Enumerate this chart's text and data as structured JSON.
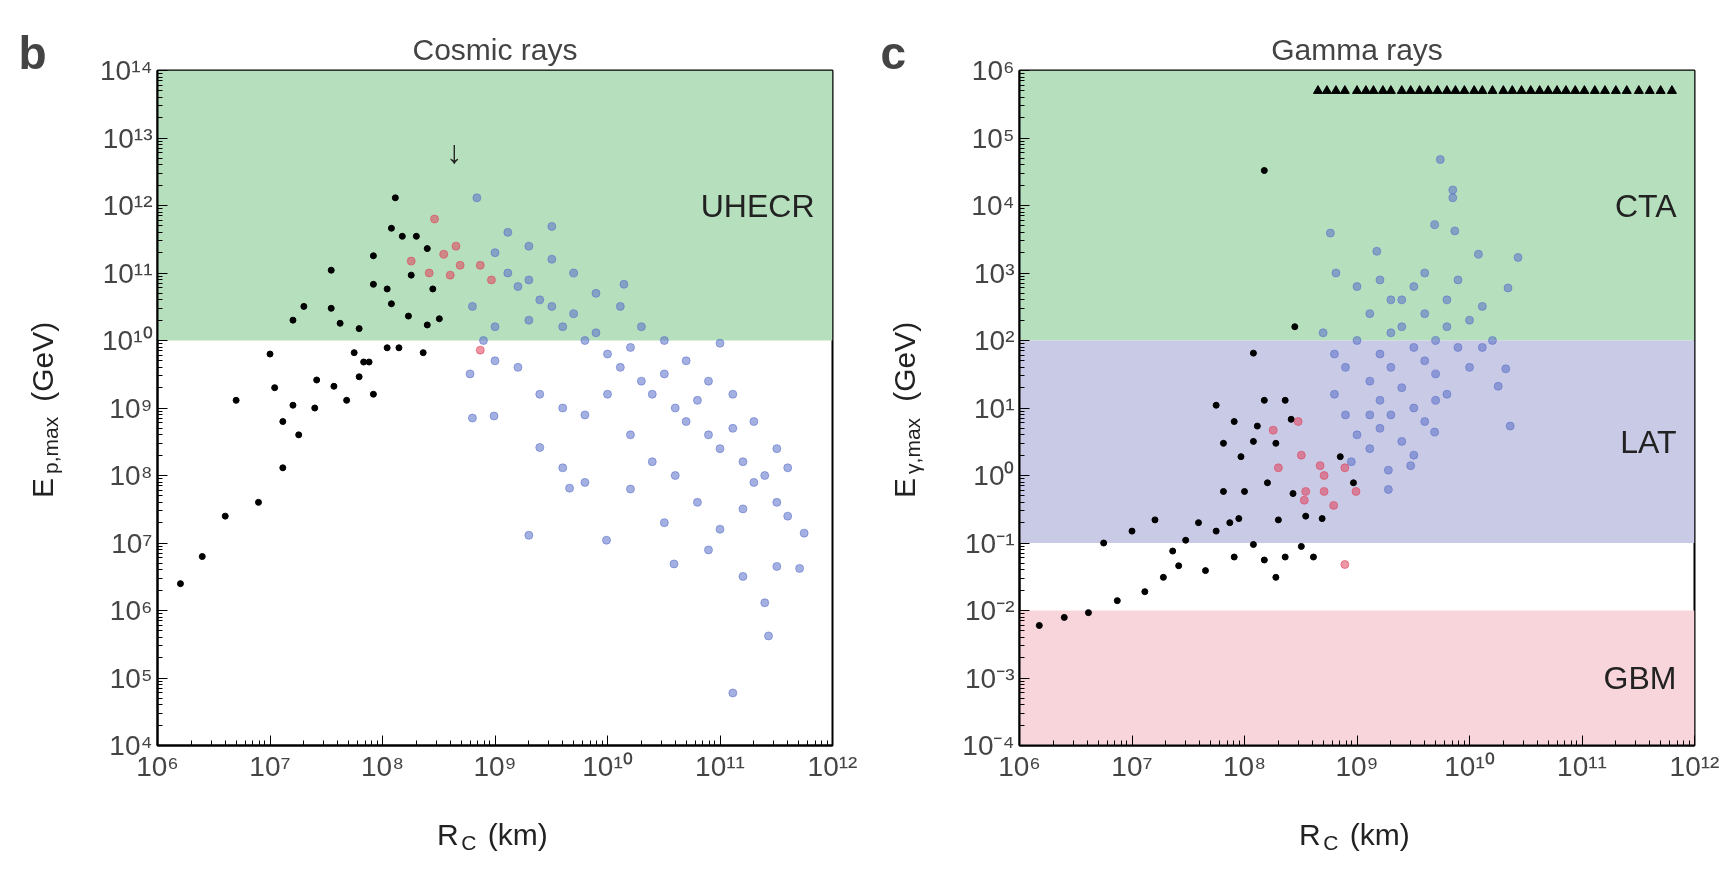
{
  "chart_data": [
    {
      "type": "scatter",
      "title": "Cosmic rays",
      "xlabel": "R$_{C}$ (km)",
      "ylabel": "E$_{p,max}$ (GeV)",
      "log": "xy",
      "grid": false,
      "marker": "circle",
      "xlim": [
        1000000.0,
        1000000000000.0
      ],
      "ylim": [
        10000.0,
        100000000000000.0
      ],
      "xticks": [
        {
          "value": 1000000.0,
          "label": "10⁶"
        },
        {
          "value": 10000000.0,
          "label": "10⁷"
        },
        {
          "value": 100000000.0,
          "label": "10⁸"
        },
        {
          "value": 1000000000.0,
          "label": "10⁹"
        },
        {
          "value": 10000000000.0,
          "label": "10¹⁰"
        },
        {
          "value": 100000000000.0,
          "label": "10¹¹"
        },
        {
          "value": 1000000000000.0,
          "label": "10¹²"
        }
      ],
      "yticks": [
        {
          "value": 10000.0,
          "label": "10⁴"
        },
        {
          "value": 100000.0,
          "label": "10⁵"
        },
        {
          "value": 1000000.0,
          "label": "10⁶"
        },
        {
          "value": 10000000.0,
          "label": "10⁷"
        },
        {
          "value": 100000000.0,
          "label": "10⁸"
        },
        {
          "value": 1000000000.0,
          "label": "10⁹"
        },
        {
          "value": 10000000000.0,
          "label": "10¹⁰"
        },
        {
          "value": 100000000000.0,
          "label": "10¹¹"
        },
        {
          "value": 1000000000000.0,
          "label": "10¹²"
        },
        {
          "value": 10000000000000.0,
          "label": "10¹³"
        },
        {
          "value": 100000000000000.0,
          "label": "10¹⁴"
        }
      ],
      "bands": [
        {
          "axis": "y",
          "from": 10000000000.0,
          "to": 100000000000000.0,
          "label": "UHECR",
          "color": "#b5dfbd"
        }
      ],
      "annotations": [
        "b",
        "↓"
      ],
      "series": [
        {
          "color": "#5a6fc8",
          "x": [
            2000000000.0,
            270000000000.0,
            2500000000.0,
            4600000000.0,
            690000000.0,
            3200000000.0,
            14000000000.0,
            100000000000.0,
            560000000000.0,
            510000000000.0,
            320000000000.0,
            39000000000.0,
            9800000000.0,
            630000000.0,
            980000000.0,
            600000000.0,
            130000000000.0,
            1000000000.0,
            1300000000.0,
            1600000000.0,
            2000000000.0,
            2500000000.0,
            2000000000.0,
            3200000000.0,
            4000000000.0,
            5000000000.0,
            6300000000.0,
            7900000000.0,
            10000000000.0,
            13000000000.0,
            16000000000.0,
            20000000000.0,
            25000000000.0,
            32000000000.0,
            40000000000.0,
            50000000000.0,
            63000000000.0,
            79000000000.0,
            100000000000.0,
            130000000000.0,
            160000000000.0,
            200000000000.0,
            250000000000.0,
            320000000000.0,
            400000000000.0,
            1000000000.0,
            1600000000.0,
            2500000000.0,
            4000000000.0,
            6300000000.0,
            10000000000.0,
            16000000000.0,
            25000000000.0,
            40000000000.0,
            63000000000.0,
            100000000000.0,
            160000000000.0,
            1300000000.0,
            2000000000.0,
            3200000000.0,
            5000000000.0,
            7900000000.0,
            13000000000.0,
            20000000000.0,
            32000000000.0,
            50000000000.0,
            79000000000.0,
            130000000000.0,
            200000000000.0,
            320000000000.0,
            400000000000.0,
            630000000.0,
            790000000.0,
            1000000000.0,
            4000000000.0,
            6300000000.0,
            16000000000.0,
            32000000000.0,
            79000000000.0,
            160000000000.0,
            250000000000.0
          ],
          "values": [
            13000000.0,
            420000.0,
            260000000.0,
            65000000.0,
            1300000000000.0,
            490000000000.0,
            68000000000.0,
            9100000000.0,
            14000000.0,
            4200000.0,
            4500000.0,
            4900000.0,
            11000000.0,
            710000000.0,
            760000000.0,
            3200000000.0,
            60000.0,
            200000000000.0,
            100000000000.0,
            63000000000.0,
            79000000000.0,
            40000000000.0,
            20000000000.0,
            32000000000.0,
            16000000000.0,
            25000000000.0,
            10000000000.0,
            13000000000.0,
            6300000000.0,
            4000000000.0,
            7900000000.0,
            2500000000.0,
            1600000000.0,
            3200000000.0,
            1000000000.0,
            630000000.0,
            1300000000.0,
            400000000.0,
            250000000.0,
            500000000.0,
            160000000.0,
            79000000.0,
            100000000.0,
            40000000.0,
            25000000.0,
            16000000000.0,
            4000000000.0,
            1600000000.0,
            1000000000.0,
            790000000.0,
            1600000000.0,
            400000000.0,
            160000000.0,
            100000000.0,
            40000000.0,
            16000000.0,
            32000000.0,
            400000000000.0,
            250000000000.0,
            160000000000.0,
            100000000000.0,
            50000000000.0,
            32000000000.0,
            16000000000.0,
            10000000000.0,
            5000000000.0,
            2500000000.0,
            1600000000.0,
            630000000.0,
            250000000.0,
            130000000.0,
            32000000000.0,
            10000000000.0,
            5000000000.0,
            130000000.0,
            79000000.0,
            63000000.0,
            20000000.0,
            7900000.0,
            3200000.0,
            1300000.0
          ]
        },
        {
          "color": "#000000",
          "x": [
            1600000.0,
            2500000.0,
            4000000.0,
            7900000.0,
            13000000.0,
            13000000.0,
            5000000.0,
            11000000.0,
            10000000.0,
            16000000.0,
            20000000.0,
            18000000.0,
            16000000.0,
            25000000.0,
            26000000.0,
            37000000.0,
            48000000.0,
            62000000.0,
            83000000.0,
            76000000.0,
            110000000.0,
            140000000.0,
            230000000.0,
            35000000.0,
            35000000.0,
            42000000.0,
            62000000.0,
            83000000.0,
            83000000.0,
            110000000.0,
            120000000.0,
            130000000.0,
            120000000.0,
            150000000.0,
            180000000.0,
            200000000.0,
            250000000.0,
            280000000.0,
            320000000.0,
            250000000.0,
            170000000.0,
            56000000.0,
            68000000.0
          ],
          "values": [
            2500000.0,
            6300000.0,
            25000000.0,
            40000000.0,
            130000000.0,
            630000000.0,
            1300000000.0,
            2000000000.0,
            6300000000.0,
            20000000000.0,
            32000000000.0,
            400000000.0,
            1100000000.0,
            1000000000.0,
            2600000000.0,
            2100000000.0,
            1300000000.0,
            2900000000.0,
            1600000000.0,
            4800000000.0,
            7800000000.0,
            7800000000.0,
            6600000000.0,
            30000000000.0,
            110000000000.0,
            18000000000.0,
            15000000000.0,
            68000000000.0,
            180000000000.0,
            58000000000.0,
            35000000000.0,
            1300000000000.0,
            460000000000.0,
            350000000000.0,
            93000000000.0,
            350000000000.0,
            230000000000.0,
            58000000000.0,
            21000000000.0,
            17000000000.0,
            23000000000.0,
            6600000000.0,
            4800000000.0
          ]
        },
        {
          "color": "#e0405a",
          "x": [
            290000000.0,
            180000000.0,
            260000000.0,
            350000000.0,
            450000000.0,
            490000000.0,
            400000000.0,
            740000000.0,
            930000000.0,
            740000000.0
          ],
          "values": [
            630000000000.0,
            150000000000.0,
            100000000000.0,
            190000000000.0,
            250000000000.0,
            130000000000.0,
            93000000000.0,
            130000000000.0,
            79000000000.0,
            7200000000.0
          ]
        }
      ]
    },
    {
      "type": "scatter",
      "title": "Gamma rays",
      "xlabel": "R$_{C}$ (km)",
      "ylabel": "E$_{γ,max}$ (GeV)",
      "log": "xy",
      "grid": false,
      "marker": "circle",
      "xlim": [
        1000000.0,
        1000000000000.0
      ],
      "ylim": [
        0.0001,
        1000000.0
      ],
      "xticks": [
        {
          "value": 1000000.0,
          "label": "10⁶"
        },
        {
          "value": 10000000.0,
          "label": "10⁷"
        },
        {
          "value": 100000000.0,
          "label": "10⁸"
        },
        {
          "value": 1000000000.0,
          "label": "10⁹"
        },
        {
          "value": 10000000000.0,
          "label": "10¹⁰"
        },
        {
          "value": 100000000000.0,
          "label": "10¹¹"
        },
        {
          "value": 1000000000000.0,
          "label": "10¹²"
        }
      ],
      "yticks": [
        {
          "value": 0.0001,
          "label": "10⁻⁴"
        },
        {
          "value": 0.001,
          "label": "10⁻³"
        },
        {
          "value": 0.01,
          "label": "10⁻²"
        },
        {
          "value": 0.1,
          "label": "10⁻¹"
        },
        {
          "value": 1,
          "label": "10⁰"
        },
        {
          "value": 10,
          "label": "10¹"
        },
        {
          "value": 100,
          "label": "10²"
        },
        {
          "value": 1000,
          "label": "10³"
        },
        {
          "value": 10000.0,
          "label": "10⁴"
        },
        {
          "value": 100000.0,
          "label": "10⁵"
        },
        {
          "value": 1000000.0,
          "label": "10⁶"
        }
      ],
      "bands": [
        {
          "axis": "y",
          "from": 100,
          "to": 1000000.0,
          "label": "CTA",
          "color": "#b5dfbd"
        },
        {
          "axis": "y",
          "from": 0.1,
          "to": 100,
          "label": "LAT",
          "color": "#c9cbe6"
        },
        {
          "axis": "y",
          "from": 0.0001,
          "to": 0.01,
          "label": "GBM",
          "color": "#f7d5da"
        }
      ],
      "annotations": [
        "c"
      ],
      "series": [
        {
          "color": "#5a6fc8",
          "x": [
            5500000000.0,
            7100000000.0,
            7100000000.0,
            4900000000.0,
            7400000000.0,
            580000000.0,
            12000000000.0,
            27000000000.0,
            1500000000.0,
            650000000.0,
            22000000000.0,
            13000000000.0,
            21000000000.0,
            18000000000.0,
            23000000000.0,
            4900000000.0,
            3000000000.0,
            1900000000.0,
            1900000000.0,
            1000000000.0,
            1300000000.0,
            1600000000.0,
            2000000000.0,
            2500000000.0,
            3200000000.0,
            4000000000.0,
            5000000000.0,
            6300000000.0,
            7900000000.0,
            10000000000.0,
            1300000000.0,
            1600000000.0,
            2000000000.0,
            2500000000.0,
            3200000000.0,
            4000000000.0,
            5000000000.0,
            6300000000.0,
            7900000000.0,
            10000000000.0,
            790000000.0,
            630000000.0,
            790000000.0,
            1000000000.0,
            1300000000.0,
            1600000000.0,
            2000000000.0,
            2500000000.0,
            3200000000.0,
            4000000000.0,
            630000000.0,
            500000000.0,
            1000000000.0,
            1600000000.0,
            2500000000.0,
            4000000000.0,
            6300000000.0,
            13000000000.0,
            16000000000.0,
            3200000000.0,
            2000000000.0,
            5000000000.0,
            1300000000.0,
            890000000.0
          ],
          "values": [
            48000.0,
            17000.0,
            13000.0,
            5200.0,
            4200.0,
            3900.0,
            1900.0,
            1700.0,
            2100.0,
            1000.0,
            600,
            79,
            38,
            21,
            5.4,
            4.4,
            1.4,
            0.62,
            1.2,
            100,
            250,
            63,
            400,
            160,
            630,
            250,
            100,
            400,
            790,
            200,
            25,
            13,
            40,
            20,
            10,
            50,
            32,
            16,
            79,
            40,
            40,
            16,
            7.9,
            4,
            2.5,
            5,
            7.9,
            3.2,
            2,
            6.3,
            63,
            130,
            630,
            790,
            400,
            1000,
            160,
            320,
            100,
            79,
            130,
            13,
            7.9,
            1.6
          ]
        },
        {
          "color": "#000000",
          "x": [
            1500000.0,
            2500000.0,
            4100000.0,
            7400000.0,
            13000000.0,
            19000000.0,
            5600000.0,
            10000000.0,
            16000000.0,
            23000000.0,
            26000000.0,
            30000000.0,
            39000000.0,
            45000000.0,
            56000000.0,
            74000000.0,
            81000000.0,
            89000000.0,
            120000000.0,
            150000000.0,
            190000000.0,
            230000000.0,
            320000000.0,
            410000000.0,
            350000000.0,
            490000000.0,
            270000000.0,
            200000000.0,
            160000000.0,
            100000000.0,
            65000000.0,
            93000000.0,
            65000000.0,
            120000000.0,
            81000000.0,
            56000000.0,
            130000000.0,
            190000000.0,
            150000000.0,
            230000000.0,
            260000000.0,
            120000000.0,
            280000000.0,
            150000000.0,
            710000000.0,
            930000000.0
          ],
          "values": [
            0.006,
            0.0079,
            0.0093,
            0.014,
            0.019,
            0.031,
            0.1,
            0.15,
            0.22,
            0.076,
            0.046,
            0.11,
            0.2,
            0.039,
            0.15,
            0.2,
            0.062,
            0.23,
            0.095,
            0.056,
            0.031,
            0.062,
            0.089,
            0.062,
            0.25,
            0.23,
            0.54,
            0.22,
            0.78,
            0.58,
            0.58,
            1.9,
            3.0,
            3.2,
            6.3,
            11,
            5.4,
            3.0,
            13,
            13,
            6.8,
            65,
            160,
            33000.0,
            1.9,
            0.78
          ]
        },
        {
          "color": "#e0405a",
          "x": [
            180000000.0,
            300000000.0,
            200000000.0,
            320000000.0,
            470000000.0,
            510000000.0,
            780000000.0,
            350000000.0,
            510000000.0,
            340000000.0,
            620000000.0,
            980000000.0,
            780000000.0
          ],
          "values": [
            4.7,
            6.3,
            1.3,
            2.0,
            1.4,
            1.0,
            1.3,
            0.58,
            0.58,
            0.43,
            0.36,
            0.58,
            0.048
          ]
        },
        {
          "color": "#000000",
          "marker": "triangle",
          "x": [
            450000000.0,
            540000000.0,
            650000000.0,
            780000000.0,
            1000000000.0,
            1200000000.0,
            1400000000.0,
            1700000000.0,
            2000000000.0,
            2500000000.0,
            3000000000.0,
            3600000000.0,
            4300000000.0,
            5200000000.0,
            6300000000.0,
            7500000000.0,
            9000000000.0,
            11000000000.0,
            13000000000.0,
            16000000000.0,
            20000000000.0,
            24000000000.0,
            29000000000.0,
            35000000000.0,
            42000000000.0,
            50000000000.0,
            60000000000.0,
            72000000000.0,
            87000000000.0,
            105000000000.0,
            130000000000.0,
            160000000000.0,
            200000000000.0,
            250000000000.0,
            320000000000.0,
            400000000000.0,
            500000000000.0,
            630000000000.0
          ],
          "values": [
            500000.0,
            500000.0,
            500000.0,
            500000.0,
            500000.0,
            500000.0,
            500000.0,
            500000.0,
            500000.0,
            500000.0,
            500000.0,
            500000.0,
            500000.0,
            500000.0,
            500000.0,
            500000.0,
            500000.0,
            500000.0,
            500000.0,
            500000.0,
            500000.0,
            500000.0,
            500000.0,
            500000.0,
            500000.0,
            500000.0,
            500000.0,
            500000.0,
            500000.0,
            500000.0,
            500000.0,
            500000.0,
            500000.0,
            500000.0,
            500000.0,
            500000.0,
            500000.0,
            500000.0
          ]
        }
      ]
    }
  ]
}
